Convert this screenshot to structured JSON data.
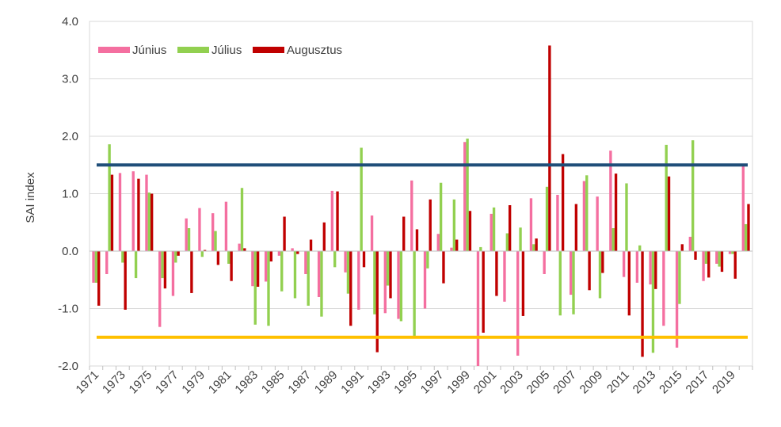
{
  "chart_data": {
    "type": "bar",
    "ylabel": "SAI index",
    "ylim": [
      -2.0,
      4.0
    ],
    "yticks": [
      "-2.0",
      "-1.0",
      "0.0",
      "1.0",
      "2.0",
      "3.0",
      "4.0"
    ],
    "grid": "horizontal",
    "legend_position": "top-left",
    "x": [
      1971,
      1972,
      1973,
      1974,
      1975,
      1976,
      1977,
      1978,
      1979,
      1980,
      1981,
      1982,
      1983,
      1984,
      1985,
      1986,
      1987,
      1988,
      1989,
      1990,
      1991,
      1992,
      1993,
      1994,
      1995,
      1996,
      1997,
      1998,
      1999,
      2000,
      2001,
      2002,
      2003,
      2004,
      2005,
      2006,
      2007,
      2008,
      2009,
      2010,
      2011,
      2012,
      2013,
      2014,
      2015,
      2016,
      2017,
      2018,
      2019,
      2020
    ],
    "x_tick_labels": [
      "1971",
      "1973",
      "1975",
      "1977",
      "1979",
      "1981",
      "1983",
      "1985",
      "1987",
      "1989",
      "1991",
      "1993",
      "1995",
      "1997",
      "1999",
      "2001",
      "2003",
      "2005",
      "2007",
      "2009",
      "2011",
      "2013",
      "2015",
      "2017",
      "2019"
    ],
    "series": [
      {
        "name": "Június",
        "color": "#f46fa0",
        "values": [
          -0.55,
          -0.4,
          1.36,
          1.39,
          1.33,
          -1.32,
          -0.78,
          0.57,
          0.75,
          0.66,
          0.86,
          0.13,
          -0.61,
          -0.53,
          -0.08,
          0.05,
          -0.4,
          -0.8,
          1.05,
          -0.37,
          -1.02,
          0.62,
          -1.08,
          -1.18,
          1.23,
          -1.0,
          0.3,
          0.06,
          1.9,
          -2.0,
          0.65,
          -0.88,
          -1.82,
          0.92,
          -0.4,
          0.98,
          -0.76,
          1.22,
          0.95,
          1.75,
          -0.45,
          -0.55,
          -0.58,
          -1.3,
          -1.68,
          0.25,
          -0.52,
          -0.22,
          -0.05,
          1.5
        ]
      },
      {
        "name": "Július",
        "color": "#92d050",
        "values": [
          -0.55,
          1.86,
          -0.2,
          -0.47,
          1.02,
          -0.47,
          -0.2,
          0.4,
          -0.1,
          0.35,
          -0.22,
          1.1,
          -1.28,
          -1.3,
          -0.7,
          -0.82,
          -0.95,
          -1.14,
          -0.28,
          -0.74,
          1.8,
          -1.1,
          -0.6,
          -1.22,
          -1.48,
          -0.3,
          1.19,
          0.9,
          1.96,
          0.07,
          0.76,
          0.31,
          0.41,
          0.12,
          1.12,
          -1.12,
          -1.1,
          1.32,
          -0.82,
          0.4,
          1.18,
          0.1,
          -1.77,
          1.85,
          -0.92,
          1.93,
          -0.22,
          -0.27,
          -0.05,
          0.47
        ]
      },
      {
        "name": "Augusztus",
        "color": "#c00000",
        "values": [
          -0.95,
          1.33,
          -1.02,
          1.26,
          1.0,
          -0.65,
          -0.08,
          -0.73,
          0.02,
          -0.24,
          -0.52,
          0.05,
          -0.62,
          -0.18,
          0.6,
          -0.05,
          0.2,
          0.5,
          1.04,
          -1.3,
          -0.28,
          -1.76,
          -0.82,
          0.6,
          0.38,
          0.9,
          -0.56,
          0.2,
          0.7,
          -1.42,
          -0.78,
          0.8,
          -1.13,
          0.22,
          3.58,
          1.69,
          0.82,
          -0.68,
          -0.38,
          1.35,
          -1.12,
          -1.84,
          -0.66,
          1.3,
          0.12,
          -0.15,
          -0.46,
          -0.36,
          -0.48,
          0.82
        ]
      }
    ],
    "reference_lines": [
      {
        "value": 1.5,
        "color": "#1f4e79"
      },
      {
        "value": -1.5,
        "color": "#ffc000"
      }
    ]
  }
}
